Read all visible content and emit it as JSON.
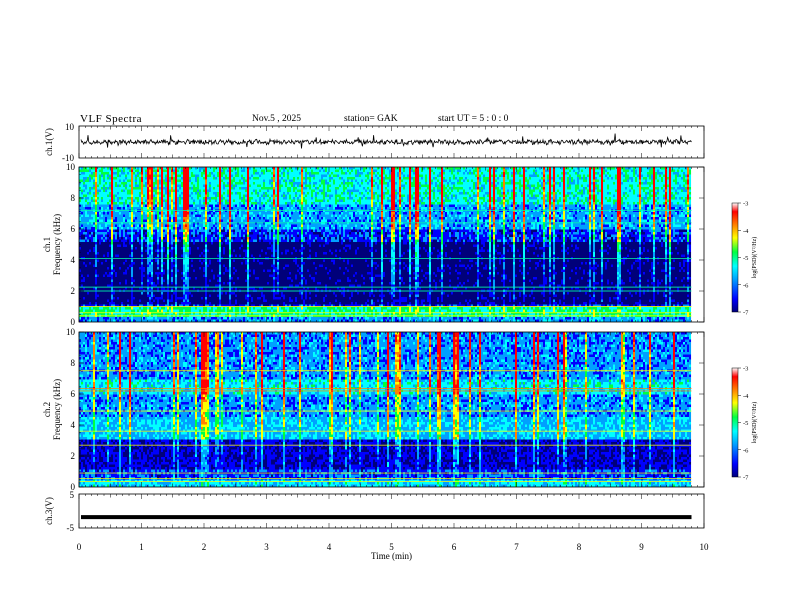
{
  "header": {
    "title": "VLF  Spectra",
    "date": "Nov.5   , 2025",
    "station": "station= GAK",
    "start": "start  UT  =    5  : 0   : 0"
  },
  "chart_data": [
    {
      "type": "line",
      "panel": "ch1-waveform",
      "ylabel": "ch.1(V)",
      "ylim": [
        -10,
        10
      ],
      "yticks": [
        "10",
        "-10"
      ],
      "xlim": [
        0,
        10
      ],
      "mean_level": 0,
      "color": "#000000"
    },
    {
      "type": "heatmap",
      "panel": "ch1-spectrogram",
      "ylabel": "ch.1\nFrequency  (kHz)",
      "ylim": [
        0,
        10
      ],
      "yticks": [
        "0",
        "2",
        "4",
        "6",
        "8",
        "10"
      ],
      "xlim": [
        0,
        9.8
      ],
      "colorbar": {
        "label": "log(PSD)(V²/Hz)",
        "range": [
          -7,
          -3
        ],
        "ticks": [
          "-3",
          "-4",
          "-5",
          "-6",
          "-7"
        ]
      }
    },
    {
      "type": "heatmap",
      "panel": "ch2-spectrogram",
      "ylabel": "ch.2\nFrequency  (kHz)",
      "ylim": [
        0,
        10
      ],
      "yticks": [
        "0",
        "2",
        "4",
        "6",
        "8",
        "10"
      ],
      "xlim": [
        0,
        9.8
      ],
      "colorbar": {
        "label": "log(PSD)(V²/Hz)",
        "range": [
          -7,
          -3
        ],
        "ticks": [
          "-3",
          "-4",
          "-5",
          "-6",
          "-7"
        ]
      }
    },
    {
      "type": "line",
      "panel": "ch3-waveform",
      "ylabel": "ch.3(V)",
      "ylim": [
        -5,
        5
      ],
      "yticks": [
        "5",
        "-5"
      ],
      "xlim": [
        0,
        10
      ],
      "mean_level": -1.8,
      "color": "#000000"
    }
  ],
  "x_axis": {
    "label": "Time  (min)",
    "range": [
      0,
      10
    ],
    "ticks": [
      "0",
      "1",
      "2",
      "3",
      "4",
      "5",
      "6",
      "7",
      "8",
      "9",
      "10"
    ]
  },
  "colors": {
    "colormap": [
      "#00007a",
      "#0000ff",
      "#00a0ff",
      "#00ffff",
      "#00ff40",
      "#ffff00",
      "#ff8000",
      "#ff0000",
      "#ffffff"
    ]
  }
}
